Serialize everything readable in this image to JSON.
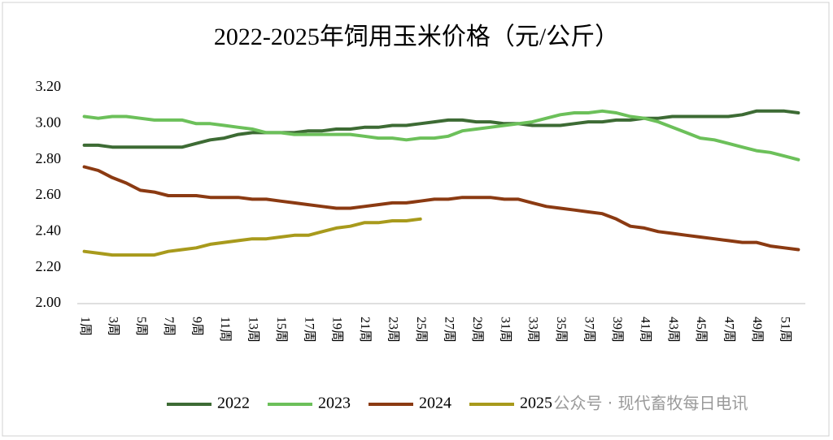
{
  "chart_data": {
    "type": "line",
    "title": "2022-2025年饲用玉米价格（元/公斤）",
    "categories": [
      "1周",
      null,
      "3周",
      null,
      "5周",
      null,
      "7周",
      null,
      "9周",
      null,
      "11周",
      null,
      "13周",
      null,
      "15周",
      null,
      "17周",
      null,
      "19周",
      null,
      "21周",
      null,
      "23周",
      null,
      "25周",
      null,
      "27周",
      null,
      "29周",
      null,
      "31周",
      null,
      "33周",
      null,
      "35周",
      null,
      "37周",
      null,
      "39周",
      null,
      "41周",
      null,
      "43周",
      null,
      "45周",
      null,
      "47周",
      null,
      "49周",
      null,
      "51周",
      null
    ],
    "series": [
      {
        "name": "2022",
        "color": "#3d6b34",
        "values": [
          2.88,
          2.88,
          2.87,
          2.87,
          2.87,
          2.87,
          2.87,
          2.87,
          2.89,
          2.91,
          2.92,
          2.94,
          2.95,
          2.95,
          2.95,
          2.95,
          2.96,
          2.96,
          2.97,
          2.97,
          2.98,
          2.98,
          2.99,
          2.99,
          3.0,
          3.01,
          3.02,
          3.02,
          3.01,
          3.01,
          3.0,
          3.0,
          2.99,
          2.99,
          2.99,
          3.0,
          3.01,
          3.01,
          3.02,
          3.02,
          3.03,
          3.03,
          3.04,
          3.04,
          3.04,
          3.04,
          3.04,
          3.05,
          3.07,
          3.07,
          3.07,
          3.06
        ]
      },
      {
        "name": "2023",
        "color": "#6cc05a",
        "values": [
          3.04,
          3.03,
          3.04,
          3.04,
          3.03,
          3.02,
          3.02,
          3.02,
          3.0,
          3.0,
          2.99,
          2.98,
          2.97,
          2.95,
          2.95,
          2.94,
          2.94,
          2.94,
          2.94,
          2.94,
          2.93,
          2.92,
          2.92,
          2.91,
          2.92,
          2.92,
          2.93,
          2.96,
          2.97,
          2.98,
          2.99,
          3.0,
          3.01,
          3.03,
          3.05,
          3.06,
          3.06,
          3.07,
          3.06,
          3.04,
          3.03,
          3.01,
          2.98,
          2.95,
          2.92,
          2.91,
          2.89,
          2.87,
          2.85,
          2.84,
          2.82,
          2.8
        ]
      },
      {
        "name": "2024",
        "color": "#8b3a12",
        "values": [
          2.76,
          2.74,
          2.7,
          2.67,
          2.63,
          2.62,
          2.6,
          2.6,
          2.6,
          2.59,
          2.59,
          2.59,
          2.58,
          2.58,
          2.57,
          2.56,
          2.55,
          2.54,
          2.53,
          2.53,
          2.54,
          2.55,
          2.56,
          2.56,
          2.57,
          2.58,
          2.58,
          2.59,
          2.59,
          2.59,
          2.58,
          2.58,
          2.56,
          2.54,
          2.53,
          2.52,
          2.51,
          2.5,
          2.47,
          2.43,
          2.42,
          2.4,
          2.39,
          2.38,
          2.37,
          2.36,
          2.35,
          2.34,
          2.34,
          2.32,
          2.31,
          2.3
        ]
      },
      {
        "name": "2025",
        "color": "#a89a1c",
        "values": [
          2.29,
          2.28,
          2.27,
          2.27,
          2.27,
          2.27,
          2.29,
          2.3,
          2.31,
          2.33,
          2.34,
          2.35,
          2.36,
          2.36,
          2.37,
          2.38,
          2.38,
          2.4,
          2.42,
          2.43,
          2.45,
          2.45,
          2.46,
          2.46,
          2.47,
          null,
          null,
          null,
          null,
          null,
          null,
          null,
          null,
          null,
          null,
          null,
          null,
          null,
          null,
          null,
          null,
          null,
          null,
          null,
          null,
          null,
          null,
          null,
          null,
          null,
          null,
          null
        ]
      }
    ],
    "ylim": [
      2,
      3.2
    ],
    "yticks": [
      {
        "value": 2,
        "label": "2.00"
      },
      {
        "value": 2.2,
        "label": "2.20"
      },
      {
        "value": 2.4,
        "label": "2.40"
      },
      {
        "value": 2.6,
        "label": "2.60"
      },
      {
        "value": 2.8,
        "label": "2.80"
      },
      {
        "value": 3,
        "label": "3.00"
      },
      {
        "value": 3.2,
        "label": "3.20"
      }
    ],
    "legend": "bottom",
    "watermark": "公众号 · 现代畜牧每日电讯"
  }
}
